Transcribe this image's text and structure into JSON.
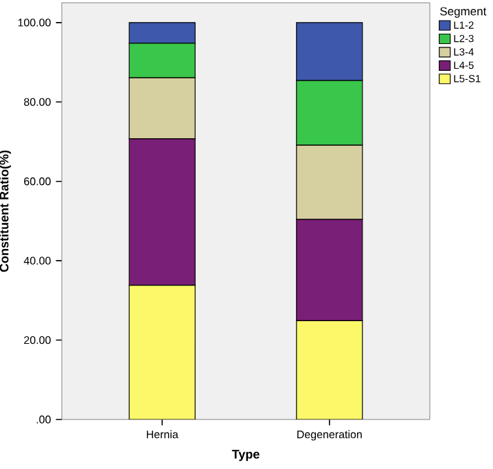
{
  "chart_data": {
    "type": "bar",
    "stacked": true,
    "xlabel": "Type",
    "ylabel": "Constituent Ratio(%)",
    "legend_title": "Segment",
    "categories": [
      "Hernia",
      "Degeneration"
    ],
    "series": [
      {
        "name": "L5-S1",
        "color": "#fbf869",
        "values": [
          33.8,
          24.9
        ]
      },
      {
        "name": "L4-5",
        "color": "#7a1f78",
        "values": [
          36.9,
          25.5
        ]
      },
      {
        "name": "L3-4",
        "color": "#d6cfa0",
        "values": [
          15.4,
          18.7
        ]
      },
      {
        "name": "L2-3",
        "color": "#3ac64a",
        "values": [
          8.7,
          16.3
        ]
      },
      {
        "name": "L1-2",
        "color": "#3e58ac",
        "values": [
          5.2,
          14.6
        ]
      }
    ],
    "ylim": [
      0,
      105
    ],
    "yticks": [
      {
        "value": 0,
        "label": ".00"
      },
      {
        "value": 20,
        "label": "20.00"
      },
      {
        "value": 40,
        "label": "40.00"
      },
      {
        "value": 60,
        "label": "60.00"
      },
      {
        "value": 80,
        "label": "80.00"
      },
      {
        "value": 100,
        "label": "100.00"
      }
    ],
    "grid": false,
    "legend": "top right"
  }
}
